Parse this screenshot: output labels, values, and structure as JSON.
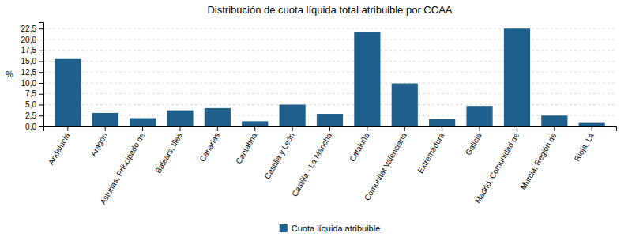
{
  "chart_data": {
    "type": "bar",
    "title": "Distribución de cuota líquida total atribuible por CCAA",
    "categories": [
      "Andalucía",
      "Aragón",
      "Asturias, Principado de",
      "Balears, Illes",
      "Canarias",
      "Cantabria",
      "Castilla y León",
      "Castilla - La Mancha",
      "Cataluña",
      "Comunitat Valenciana",
      "Extremadura",
      "Galicia",
      "Madrid, Comunidad de",
      "Murcia, Región de",
      "Rioja, La"
    ],
    "series": [
      {
        "name": "Cuota líquida atribuible",
        "color": "#1F5F8B",
        "values": [
          15.5,
          3.1,
          1.9,
          3.7,
          4.2,
          1.2,
          5.0,
          2.9,
          21.8,
          9.9,
          1.7,
          4.7,
          22.5,
          2.5,
          0.8
        ]
      }
    ],
    "ylabel": "%",
    "ylim": [
      0,
      24.0
    ],
    "yticks": [
      {
        "value": 0.0,
        "label": "0,0"
      },
      {
        "value": 2.5,
        "label": "2,5"
      },
      {
        "value": 5.0,
        "label": "5,0"
      },
      {
        "value": 7.5,
        "label": "7,5"
      },
      {
        "value": 10.0,
        "label": "10,0"
      },
      {
        "value": 12.5,
        "label": "12,5"
      },
      {
        "value": 15.0,
        "label": "15,0"
      },
      {
        "value": 17.5,
        "label": "17,5"
      },
      {
        "value": 20.0,
        "label": "20,0"
      },
      {
        "value": 22.5,
        "label": "22,5"
      }
    ],
    "grid": true,
    "legend": "bottom"
  }
}
